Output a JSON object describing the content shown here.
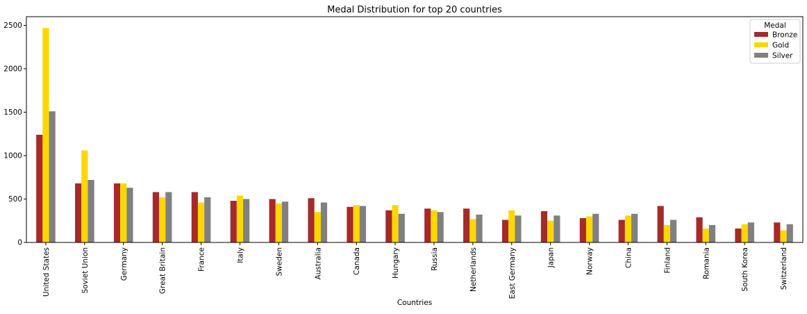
{
  "chart_data": {
    "type": "bar",
    "title": "Medal Distribution for top 20 countries",
    "xlabel": "Countries",
    "ylabel": "",
    "ylim": [
      0,
      2600
    ],
    "yticks": [
      0,
      500,
      1000,
      1500,
      2000,
      2500
    ],
    "ytick_labels": [
      "0",
      "500",
      "1000",
      "1500",
      "2000",
      "2500"
    ],
    "grid": false,
    "legend_title": "Medal",
    "legend_position": "top-right",
    "categories": [
      "United States",
      "Soviet Union",
      "Germany",
      "Great Britain",
      "France",
      "Italy",
      "Sweden",
      "Australia",
      "Canada",
      "Hungary",
      "Russia",
      "Netherlands",
      "East Germany",
      "Japan",
      "Norway",
      "China",
      "Finland",
      "Romania",
      "South Korea",
      "Switzerland"
    ],
    "series": [
      {
        "name": "Bronze",
        "color": "#A52A2A",
        "values": [
          1240,
          680,
          680,
          580,
          580,
          480,
          500,
          510,
          410,
          370,
          390,
          390,
          260,
          360,
          280,
          260,
          420,
          290,
          160,
          230
        ]
      },
      {
        "name": "Gold",
        "color": "#FFD700",
        "values": [
          2470,
          1060,
          680,
          520,
          460,
          540,
          450,
          350,
          430,
          430,
          370,
          270,
          370,
          250,
          300,
          310,
          200,
          160,
          210,
          140
        ]
      },
      {
        "name": "Silver",
        "color": "#808080",
        "values": [
          1510,
          720,
          630,
          580,
          520,
          500,
          470,
          460,
          420,
          330,
          350,
          320,
          310,
          310,
          330,
          330,
          260,
          200,
          230,
          210
        ]
      }
    ]
  }
}
